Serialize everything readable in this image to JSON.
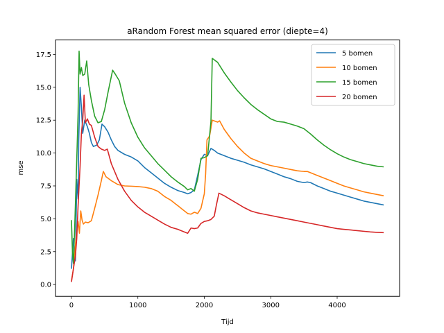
{
  "chart_data": {
    "type": "line",
    "title": "aRandom Forest mean squared error (diepte=4)",
    "xlabel": "Tijd",
    "ylabel": "mse",
    "xlim": [
      -240,
      4940
    ],
    "ylim": [
      -0.9,
      18.6
    ],
    "xticks": [
      0,
      1000,
      2000,
      3000,
      4000
    ],
    "xtick_labels": [
      "0",
      "1000",
      "2000",
      "3000",
      "4000"
    ],
    "yticks": [
      0,
      2.5,
      5,
      7.5,
      10,
      12.5,
      15,
      17.5
    ],
    "ytick_labels": [
      "0.0",
      "2.5",
      "5.0",
      "7.5",
      "10.0",
      "12.5",
      "15.0",
      "17.5"
    ],
    "grid": false,
    "legend_position": "top-right",
    "series": [
      {
        "name": "5 bomen",
        "color": "#1f77b4",
        "points": [
          [
            0,
            1.2
          ],
          [
            30,
            3.5
          ],
          [
            60,
            1.8
          ],
          [
            80,
            8
          ],
          [
            100,
            6.5
          ],
          [
            110,
            11
          ],
          [
            130,
            15
          ],
          [
            150,
            13.5
          ],
          [
            170,
            11.5
          ],
          [
            200,
            12.5
          ],
          [
            240,
            12
          ],
          [
            270,
            11.5
          ],
          [
            300,
            10.8
          ],
          [
            330,
            10.5
          ],
          [
            380,
            10.6
          ],
          [
            420,
            11
          ],
          [
            460,
            12.2
          ],
          [
            500,
            12
          ],
          [
            550,
            11.6
          ],
          [
            600,
            11
          ],
          [
            650,
            10.5
          ],
          [
            700,
            10.2
          ],
          [
            800,
            9.9
          ],
          [
            900,
            9.7
          ],
          [
            1000,
            9.4
          ],
          [
            1100,
            8.9
          ],
          [
            1200,
            8.5
          ],
          [
            1300,
            8.1
          ],
          [
            1400,
            7.7
          ],
          [
            1500,
            7.4
          ],
          [
            1600,
            7.15
          ],
          [
            1700,
            7.0
          ],
          [
            1750,
            6.9
          ],
          [
            1800,
            7.0
          ],
          [
            1850,
            7.2
          ],
          [
            1900,
            8.3
          ],
          [
            1950,
            9.5
          ],
          [
            2000,
            9.9
          ],
          [
            2050,
            9.8
          ],
          [
            2100,
            10.35
          ],
          [
            2150,
            10.2
          ],
          [
            2200,
            10.0
          ],
          [
            2300,
            9.8
          ],
          [
            2400,
            9.6
          ],
          [
            2500,
            9.45
          ],
          [
            2600,
            9.3
          ],
          [
            2700,
            9.1
          ],
          [
            2800,
            8.95
          ],
          [
            2900,
            8.8
          ],
          [
            3000,
            8.6
          ],
          [
            3100,
            8.4
          ],
          [
            3200,
            8.2
          ],
          [
            3300,
            8.05
          ],
          [
            3400,
            7.85
          ],
          [
            3500,
            7.75
          ],
          [
            3550,
            7.8
          ],
          [
            3600,
            7.75
          ],
          [
            3700,
            7.5
          ],
          [
            3800,
            7.3
          ],
          [
            3900,
            7.1
          ],
          [
            4000,
            6.95
          ],
          [
            4100,
            6.8
          ],
          [
            4200,
            6.65
          ],
          [
            4300,
            6.5
          ],
          [
            4400,
            6.35
          ],
          [
            4500,
            6.25
          ],
          [
            4600,
            6.15
          ],
          [
            4700,
            6.05
          ]
        ]
      },
      {
        "name": "10 bomen",
        "color": "#ff7f0e",
        "points": [
          [
            0,
            0.3
          ],
          [
            30,
            1.2
          ],
          [
            60,
            3
          ],
          [
            80,
            4
          ],
          [
            100,
            4.8
          ],
          [
            120,
            3.9
          ],
          [
            140,
            5.6
          ],
          [
            160,
            4.9
          ],
          [
            180,
            4.6
          ],
          [
            210,
            4.75
          ],
          [
            250,
            4.7
          ],
          [
            300,
            4.85
          ],
          [
            350,
            5.8
          ],
          [
            400,
            6.8
          ],
          [
            450,
            7.9
          ],
          [
            480,
            8.6
          ],
          [
            520,
            8.2
          ],
          [
            600,
            7.9
          ],
          [
            700,
            7.6
          ],
          [
            800,
            7.5
          ],
          [
            900,
            7.48
          ],
          [
            1000,
            7.45
          ],
          [
            1100,
            7.4
          ],
          [
            1200,
            7.3
          ],
          [
            1300,
            7.1
          ],
          [
            1400,
            6.7
          ],
          [
            1500,
            6.4
          ],
          [
            1600,
            6.0
          ],
          [
            1700,
            5.6
          ],
          [
            1750,
            5.4
          ],
          [
            1800,
            5.35
          ],
          [
            1850,
            5.5
          ],
          [
            1900,
            5.4
          ],
          [
            1950,
            5.8
          ],
          [
            2000,
            6.9
          ],
          [
            2020,
            8.4
          ],
          [
            2040,
            11
          ],
          [
            2080,
            11.3
          ],
          [
            2120,
            12.5
          ],
          [
            2200,
            12.35
          ],
          [
            2230,
            12.45
          ],
          [
            2300,
            11.8
          ],
          [
            2400,
            11.1
          ],
          [
            2500,
            10.5
          ],
          [
            2600,
            10.0
          ],
          [
            2700,
            9.6
          ],
          [
            2800,
            9.4
          ],
          [
            2900,
            9.2
          ],
          [
            3000,
            9.05
          ],
          [
            3100,
            8.95
          ],
          [
            3200,
            8.85
          ],
          [
            3300,
            8.75
          ],
          [
            3400,
            8.65
          ],
          [
            3500,
            8.6
          ],
          [
            3550,
            8.6
          ],
          [
            3600,
            8.5
          ],
          [
            3700,
            8.3
          ],
          [
            3800,
            8.1
          ],
          [
            3900,
            7.9
          ],
          [
            4000,
            7.7
          ],
          [
            4100,
            7.5
          ],
          [
            4200,
            7.35
          ],
          [
            4300,
            7.2
          ],
          [
            4400,
            7.05
          ],
          [
            4500,
            6.95
          ],
          [
            4600,
            6.85
          ],
          [
            4700,
            6.75
          ]
        ]
      },
      {
        "name": "15 bomen",
        "color": "#2ca02c",
        "points": [
          [
            0,
            4.9
          ],
          [
            15,
            2.5
          ],
          [
            30,
            1.6
          ],
          [
            50,
            4.5
          ],
          [
            80,
            9.5
          ],
          [
            100,
            13
          ],
          [
            115,
            17.75
          ],
          [
            130,
            16
          ],
          [
            150,
            16.5
          ],
          [
            170,
            15.9
          ],
          [
            200,
            16
          ],
          [
            230,
            17
          ],
          [
            260,
            15.2
          ],
          [
            300,
            14
          ],
          [
            350,
            12.8
          ],
          [
            400,
            12.3
          ],
          [
            450,
            12.4
          ],
          [
            500,
            13.3
          ],
          [
            550,
            14.6
          ],
          [
            620,
            16.3
          ],
          [
            660,
            16
          ],
          [
            720,
            15.5
          ],
          [
            800,
            13.8
          ],
          [
            900,
            12.3
          ],
          [
            1000,
            11.2
          ],
          [
            1100,
            10.4
          ],
          [
            1200,
            9.8
          ],
          [
            1300,
            9.2
          ],
          [
            1400,
            8.7
          ],
          [
            1500,
            8.2
          ],
          [
            1600,
            7.8
          ],
          [
            1700,
            7.45
          ],
          [
            1750,
            7.2
          ],
          [
            1800,
            7.3
          ],
          [
            1850,
            7.1
          ],
          [
            1900,
            8.0
          ],
          [
            1950,
            9.6
          ],
          [
            2000,
            9.65
          ],
          [
            2050,
            9.8
          ],
          [
            2100,
            12.4
          ],
          [
            2120,
            17.2
          ],
          [
            2200,
            16.9
          ],
          [
            2300,
            16.1
          ],
          [
            2400,
            15.4
          ],
          [
            2500,
            14.75
          ],
          [
            2600,
            14.2
          ],
          [
            2700,
            13.7
          ],
          [
            2800,
            13.3
          ],
          [
            2900,
            12.95
          ],
          [
            3000,
            12.6
          ],
          [
            3100,
            12.4
          ],
          [
            3200,
            12.35
          ],
          [
            3300,
            12.2
          ],
          [
            3400,
            12.05
          ],
          [
            3500,
            11.85
          ],
          [
            3600,
            11.45
          ],
          [
            3700,
            11.0
          ],
          [
            3800,
            10.6
          ],
          [
            3900,
            10.25
          ],
          [
            4000,
            9.95
          ],
          [
            4100,
            9.7
          ],
          [
            4200,
            9.5
          ],
          [
            4300,
            9.35
          ],
          [
            4400,
            9.2
          ],
          [
            4500,
            9.1
          ],
          [
            4600,
            9.0
          ],
          [
            4700,
            8.95
          ]
        ]
      },
      {
        "name": "20 bomen",
        "color": "#d62728",
        "points": [
          [
            0,
            0.2
          ],
          [
            30,
            1.2
          ],
          [
            60,
            2.2
          ],
          [
            80,
            3.5
          ],
          [
            100,
            6
          ],
          [
            130,
            9
          ],
          [
            150,
            11.5
          ],
          [
            170,
            12.5
          ],
          [
            190,
            14.4
          ],
          [
            210,
            12.3
          ],
          [
            240,
            12.6
          ],
          [
            270,
            12.2
          ],
          [
            300,
            12.1
          ],
          [
            350,
            11.2
          ],
          [
            400,
            10.5
          ],
          [
            450,
            10.3
          ],
          [
            500,
            10.2
          ],
          [
            540,
            10.3
          ],
          [
            600,
            9.2
          ],
          [
            700,
            8.0
          ],
          [
            800,
            7.1
          ],
          [
            900,
            6.4
          ],
          [
            1000,
            5.9
          ],
          [
            1100,
            5.5
          ],
          [
            1200,
            5.2
          ],
          [
            1300,
            4.9
          ],
          [
            1400,
            4.6
          ],
          [
            1500,
            4.35
          ],
          [
            1600,
            4.2
          ],
          [
            1700,
            4.0
          ],
          [
            1750,
            3.9
          ],
          [
            1800,
            4.3
          ],
          [
            1850,
            4.25
          ],
          [
            1900,
            4.3
          ],
          [
            1950,
            4.65
          ],
          [
            2000,
            4.8
          ],
          [
            2050,
            4.85
          ],
          [
            2100,
            4.95
          ],
          [
            2150,
            5.2
          ],
          [
            2180,
            6.0
          ],
          [
            2220,
            6.95
          ],
          [
            2300,
            6.75
          ],
          [
            2400,
            6.45
          ],
          [
            2500,
            6.15
          ],
          [
            2600,
            5.85
          ],
          [
            2700,
            5.6
          ],
          [
            2800,
            5.45
          ],
          [
            2900,
            5.35
          ],
          [
            3000,
            5.25
          ],
          [
            3100,
            5.15
          ],
          [
            3200,
            5.05
          ],
          [
            3300,
            4.95
          ],
          [
            3400,
            4.85
          ],
          [
            3500,
            4.75
          ],
          [
            3600,
            4.65
          ],
          [
            3700,
            4.55
          ],
          [
            3800,
            4.45
          ],
          [
            3900,
            4.35
          ],
          [
            4000,
            4.25
          ],
          [
            4100,
            4.2
          ],
          [
            4200,
            4.15
          ],
          [
            4300,
            4.1
          ],
          [
            4400,
            4.05
          ],
          [
            4500,
            4.0
          ],
          [
            4600,
            3.97
          ],
          [
            4700,
            3.95
          ]
        ]
      }
    ]
  }
}
